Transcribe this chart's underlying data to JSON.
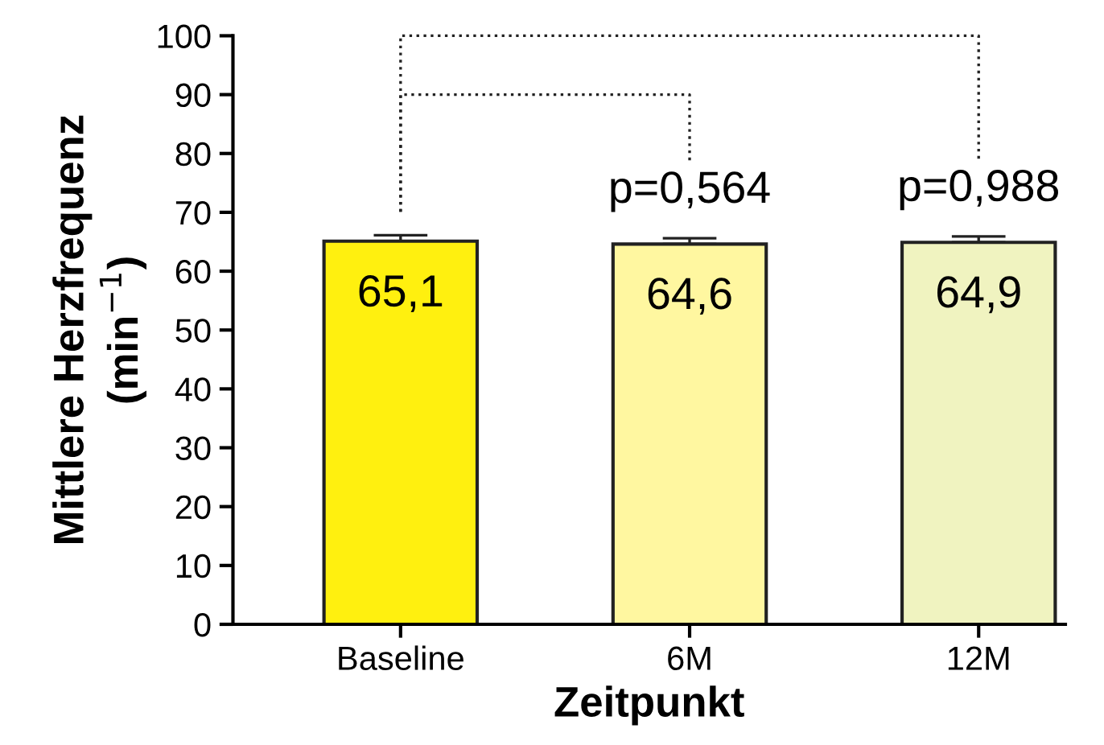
{
  "chart_data": {
    "type": "bar",
    "xlabel": "Zeitpunkt",
    "ylabel": "Mittlere Herzfrequenz\n(min$^{−1}$)",
    "categories": [
      "Baseline",
      "6M",
      "12M"
    ],
    "values": [
      65.1,
      64.6,
      64.9
    ],
    "value_labels": [
      "65,1",
      "64,6",
      "64,9"
    ],
    "colors": [
      "#fff00f",
      "#fff7a0",
      "#f0f3c0"
    ],
    "errors": [
      [
        65.1,
        66.1
      ],
      [
        64.6,
        65.6
      ],
      [
        64.9,
        65.9
      ]
    ],
    "ylim": [
      0,
      100
    ],
    "yticks": [
      0,
      10,
      20,
      30,
      40,
      50,
      60,
      70,
      80,
      90,
      100
    ],
    "grid": false,
    "legend": false,
    "annotations": [
      "p=0,564",
      "p=0,988"
    ]
  }
}
